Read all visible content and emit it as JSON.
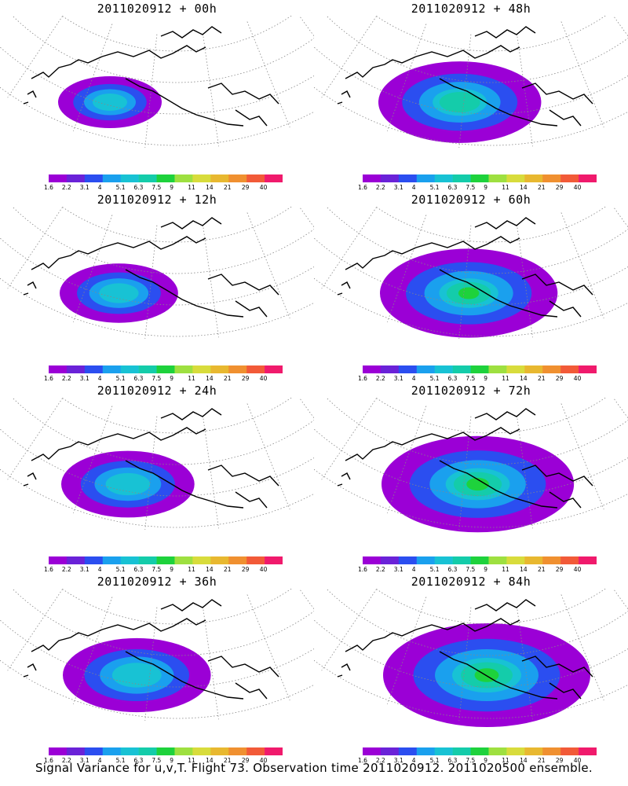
{
  "panels": [
    {
      "title": "2011020912 + 00h",
      "lead_hours": 0
    },
    {
      "title": "2011020912 + 48h",
      "lead_hours": 48
    },
    {
      "title": "2011020912 + 12h",
      "lead_hours": 12
    },
    {
      "title": "2011020912 + 60h",
      "lead_hours": 60
    },
    {
      "title": "2011020912 + 24h",
      "lead_hours": 24
    },
    {
      "title": "2011020912 + 72h",
      "lead_hours": 72
    },
    {
      "title": "2011020912 + 36h",
      "lead_hours": 36
    },
    {
      "title": "2011020912 + 84h",
      "lead_hours": 84
    }
  ],
  "colorbar": {
    "labels": [
      "1.6",
      "2.2",
      "3.1",
      "4",
      "5.1",
      "6.3",
      "7.5",
      "9",
      "11",
      "14",
      "21",
      "29",
      "40"
    ],
    "colors": [
      "#9b00d6",
      "#6a22d8",
      "#2b4ef0",
      "#1aa0ee",
      "#18c2d4",
      "#14ccaa",
      "#1ed23c",
      "#9ee040",
      "#d8dc3c",
      "#e8b830",
      "#f09030",
      "#f25a38",
      "#f01a6c"
    ]
  },
  "footer": "Signal Variance for u,v,T. Flight 73. Observation time 2011020912. 2011020500 ensemble."
}
